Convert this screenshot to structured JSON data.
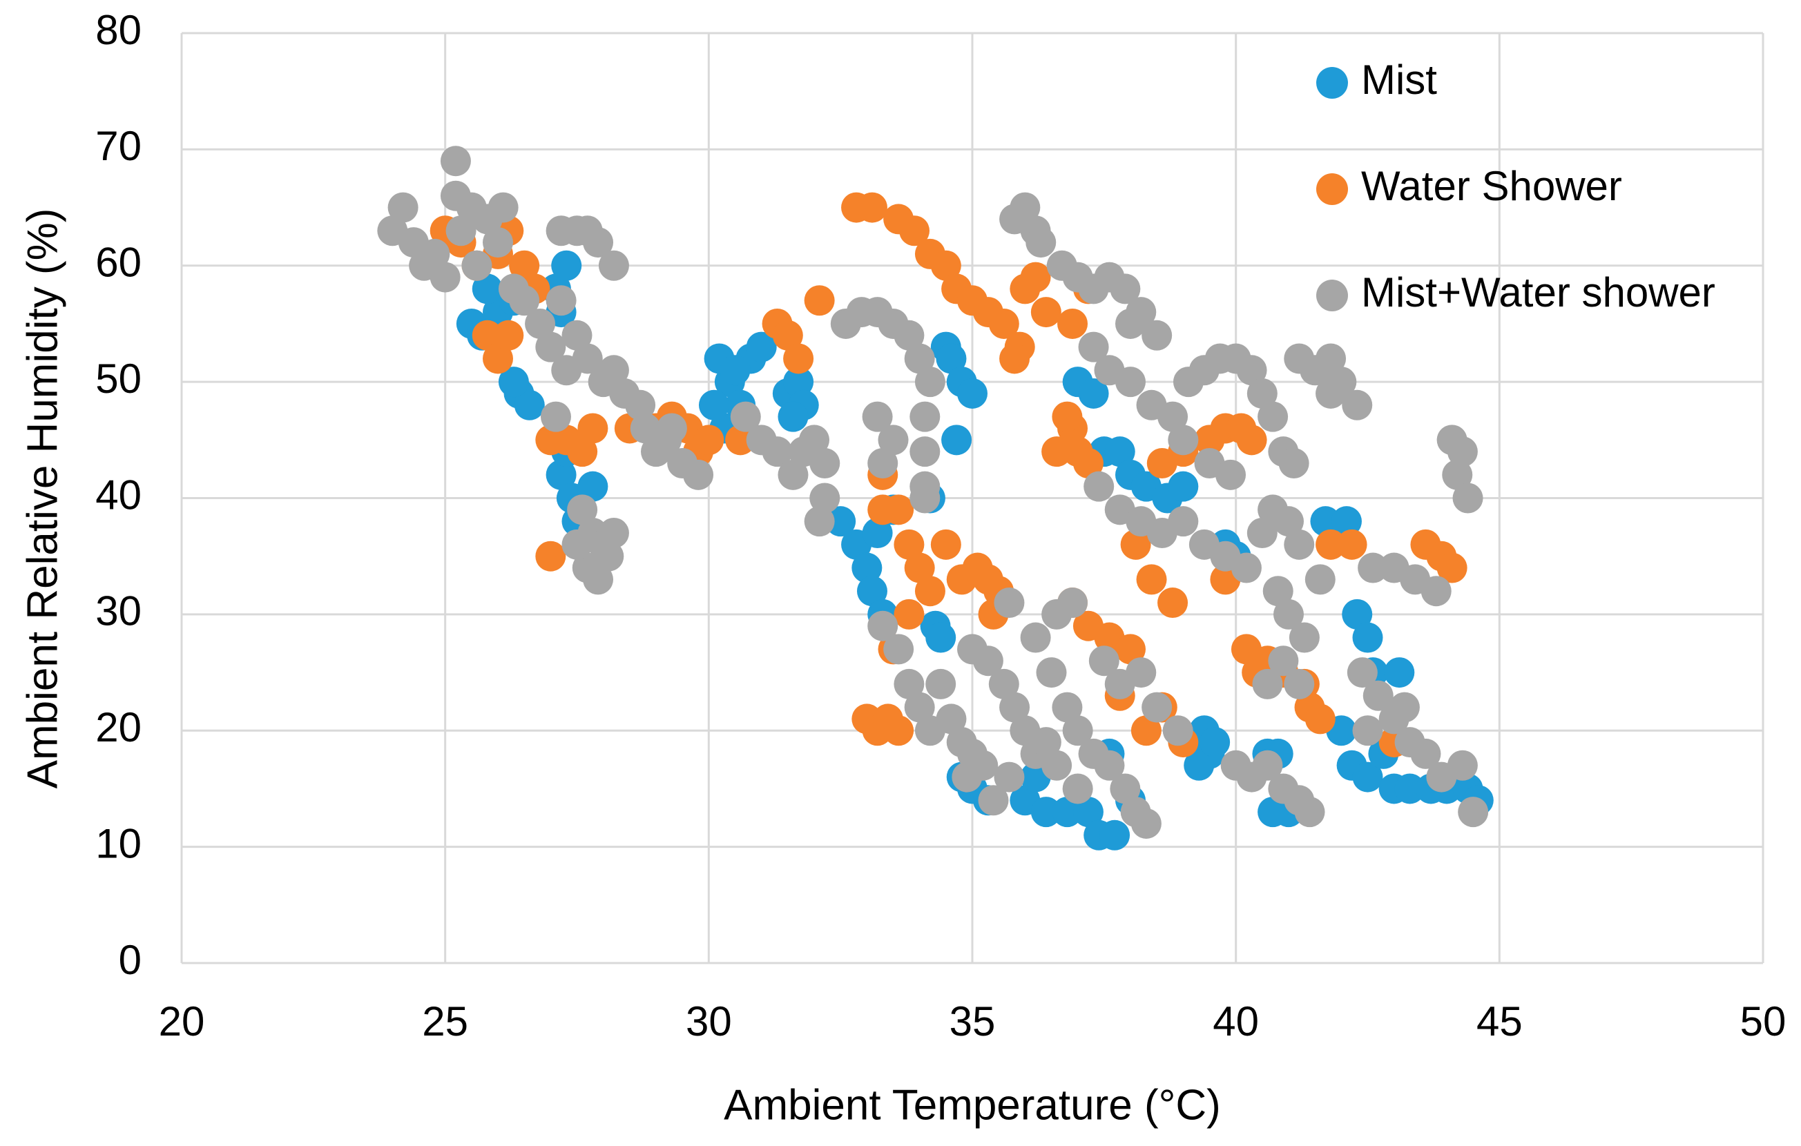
{
  "chart_data": {
    "type": "scatter",
    "x_label": "Ambient Temperature (°C)",
    "y_label": "Ambient Relative Humidity (%)",
    "xlim": [
      20,
      50
    ],
    "xticks": [
      20,
      25,
      30,
      35,
      40,
      45,
      50
    ],
    "ylim": [
      0,
      80
    ],
    "yticks": [
      0,
      10,
      20,
      30,
      40,
      50,
      60,
      70,
      80
    ],
    "grid": true,
    "legend": "top-right",
    "series": [
      {
        "name": "Mist",
        "color": "#1f9bd7",
        "x": [
          25.5,
          25.7,
          26,
          26.3,
          25.8,
          26.4,
          26.6,
          26.3,
          27.1,
          27.3,
          27.2,
          27.2,
          27.4,
          27.5,
          27.8,
          27.3,
          30.2,
          30.4,
          30.6,
          30.3,
          30.8,
          31,
          30.5,
          30.1,
          31.5,
          31.7,
          31.8,
          31.6,
          32.5,
          32.8,
          33,
          33.2,
          33.5,
          33.1,
          33.3,
          34.2,
          34.3,
          34.4,
          34.5,
          34.6,
          34.8,
          35,
          34.7,
          35,
          34.8,
          35.3,
          36,
          36.4,
          36.8,
          37.2,
          37.4,
          37.7,
          38,
          36.2,
          37.6,
          37,
          37.3,
          37.5,
          37.8,
          38,
          38.3,
          38.7,
          39,
          39.4,
          39.5,
          39.3,
          39.6,
          40.6,
          40.8,
          41,
          41.1,
          40.7,
          41.7,
          42.1,
          42.3,
          42.5,
          42.6,
          42,
          42.2,
          42.5,
          42.8,
          43,
          43.3,
          43.7,
          44,
          44.4,
          44.6,
          43.1,
          39.8,
          40
        ],
        "values": [
          55,
          54,
          56,
          57,
          58,
          49,
          48,
          50,
          58,
          60,
          56,
          42,
          40,
          38,
          41,
          44,
          52,
          50,
          48,
          46,
          52,
          53,
          51,
          48,
          49,
          50,
          48,
          47,
          38,
          36,
          34,
          37,
          39,
          32,
          30,
          40,
          29,
          28,
          53,
          52,
          50,
          49,
          45,
          15,
          16,
          14,
          14,
          13,
          13,
          13,
          11,
          11,
          14,
          16,
          18,
          50,
          49,
          44,
          44,
          42,
          41,
          40,
          41,
          20,
          18,
          17,
          19,
          18,
          18,
          13,
          14,
          13,
          38,
          38,
          30,
          28,
          25,
          20,
          17,
          16,
          18,
          15,
          15,
          15,
          15,
          15,
          14,
          25,
          36,
          35
        ]
      },
      {
        "name": "Water Shower",
        "color": "#f5822a",
        "x": [
          25,
          25.3,
          25.6,
          26,
          26.2,
          26.5,
          26.7,
          25.8,
          26,
          26.2,
          27,
          27.3,
          27.6,
          27.8,
          27,
          29,
          29.3,
          29.6,
          29.8,
          30,
          28.5,
          30.6,
          31.3,
          31.5,
          31.7,
          32.1,
          32.8,
          33.1,
          33.6,
          33.9,
          34.2,
          34.5,
          34.7,
          35,
          35.3,
          35.6,
          35.9,
          36,
          36.2,
          36.4,
          35.8,
          33.3,
          33.3,
          33.6,
          33.8,
          34,
          34.2,
          33.8,
          34.5,
          34.8,
          35.1,
          35.3,
          35.5,
          35.4,
          33.5,
          33,
          33.2,
          33.4,
          33.6,
          36.6,
          36.9,
          37,
          37.2,
          36.8,
          36.9,
          37.2,
          36.9,
          37.2,
          37.6,
          38,
          37.8,
          38.3,
          38.6,
          39,
          38.1,
          38.4,
          38.8,
          38.6,
          39,
          39.5,
          39.8,
          40.1,
          40.3,
          39.8,
          40.2,
          40.4,
          40.6,
          40.9,
          41.3,
          41.4,
          41.6,
          41.8,
          42.2,
          43,
          43.6,
          43.9,
          44.1
        ],
        "values": [
          63,
          62,
          60,
          61,
          63,
          60,
          58,
          54,
          52,
          54,
          45,
          45,
          44,
          46,
          35,
          46,
          47,
          46,
          44,
          45,
          46,
          45,
          55,
          54,
          52,
          57,
          65,
          65,
          64,
          63,
          61,
          60,
          58,
          57,
          56,
          55,
          53,
          58,
          59,
          56,
          52,
          42,
          39,
          39,
          36,
          34,
          32,
          30,
          36,
          33,
          34,
          33,
          32,
          30,
          27,
          21,
          20,
          21,
          20,
          44,
          46,
          44,
          43,
          47,
          55,
          58,
          31,
          29,
          28,
          27,
          23,
          20,
          22,
          19,
          36,
          33,
          31,
          43,
          44,
          45,
          46,
          46,
          45,
          33,
          27,
          25,
          26,
          25,
          24,
          22,
          21,
          36,
          36,
          19,
          36,
          35,
          34
        ]
      },
      {
        "name": "Mist+Water shower",
        "color": "#a6a6a6",
        "x": [
          24,
          24.2,
          24.4,
          24.6,
          24.8,
          25,
          25.2,
          25.2,
          25.3,
          25.5,
          25.8,
          26,
          26.1,
          25.6,
          26.3,
          26.5,
          26.8,
          27,
          27.3,
          27.5,
          27.7,
          28,
          28.2,
          28.4,
          28.7,
          27.2,
          27.1,
          27.2,
          27.5,
          27.7,
          27.9,
          28.2,
          27.6,
          27.8,
          28,
          27.7,
          27.9,
          28.1,
          27.5,
          28.2,
          28.8,
          29,
          29.2,
          29.5,
          29.8,
          29.3,
          30.7,
          31,
          31.3,
          31.6,
          31.8,
          32,
          32.2,
          32.2,
          32.1,
          32.6,
          32.9,
          33.2,
          33.5,
          33.8,
          34,
          34.2,
          34.1,
          34.1,
          34.1,
          34.1,
          33.2,
          33.5,
          33.3,
          33.3,
          33.6,
          33.8,
          34,
          34.2,
          34.4,
          34.6,
          34.8,
          35,
          35.2,
          35.4,
          34.9,
          35,
          35.3,
          35.6,
          35.8,
          36,
          36.2,
          36.4,
          35.7,
          36.2,
          36.6,
          36.9,
          36.5,
          36.8,
          37,
          37.3,
          37.6,
          37.9,
          38.1,
          38.3,
          36.6,
          37,
          37.5,
          37.8,
          38.2,
          38.5,
          38.9,
          35.7,
          35.8,
          36,
          36.2,
          36.3,
          36.7,
          37,
          37.3,
          37.6,
          37.9,
          38,
          38.2,
          38.5,
          37.3,
          37.6,
          38,
          38.4,
          38.8,
          39.1,
          39.4,
          39.7,
          40,
          40.3,
          40.5,
          40.7,
          40.9,
          41.1,
          39,
          39.5,
          39.9,
          37.4,
          37.8,
          38.2,
          38.6,
          39,
          39.4,
          39.8,
          40.2,
          40.5,
          40.7,
          41,
          41.2,
          40.8,
          41,
          41.3,
          41.6,
          40.9,
          41.2,
          40.6,
          40,
          40.3,
          40.6,
          40.9,
          41.2,
          41.4,
          41.2,
          41.5,
          41.8,
          42,
          42.3,
          41.8,
          42.6,
          43,
          43.4,
          43.8,
          42.4,
          42.7,
          43,
          42.5,
          43.2,
          43.3,
          43.6,
          43.9,
          44.3,
          44.5,
          44.1,
          44.3,
          44.2,
          44.4
        ],
        "values": [
          63,
          65,
          62,
          60,
          61,
          59,
          69,
          66,
          63,
          65,
          64,
          62,
          65,
          60,
          58,
          57,
          55,
          53,
          51,
          54,
          52,
          50,
          51,
          49,
          48,
          57,
          47,
          63,
          63,
          63,
          62,
          60,
          39,
          37,
          36,
          34,
          33,
          35,
          36,
          37,
          46,
          44,
          45,
          43,
          42,
          46,
          47,
          45,
          44,
          42,
          44,
          45,
          43,
          40,
          38,
          55,
          56,
          56,
          55,
          54,
          52,
          50,
          47,
          44,
          41,
          40,
          47,
          45,
          43,
          29,
          27,
          24,
          22,
          20,
          24,
          21,
          19,
          18,
          17,
          14,
          16,
          27,
          26,
          24,
          22,
          20,
          18,
          19,
          31,
          28,
          30,
          31,
          25,
          22,
          20,
          18,
          17,
          15,
          13,
          12,
          17,
          15,
          26,
          24,
          25,
          22,
          20,
          16,
          64,
          65,
          63,
          62,
          60,
          59,
          58,
          59,
          58,
          55,
          56,
          54,
          53,
          51,
          50,
          48,
          47,
          50,
          51,
          52,
          52,
          51,
          49,
          47,
          44,
          43,
          45,
          43,
          42,
          41,
          39,
          38,
          37,
          38,
          36,
          35,
          34,
          37,
          39,
          38,
          36,
          32,
          30,
          28,
          33,
          26,
          24,
          24,
          17,
          16,
          17,
          15,
          14,
          13,
          52,
          51,
          52,
          50,
          48,
          49,
          34,
          34,
          33,
          32,
          25,
          23,
          21,
          20,
          22,
          19,
          18,
          16,
          17,
          13,
          45,
          44,
          42,
          40
        ]
      }
    ]
  }
}
